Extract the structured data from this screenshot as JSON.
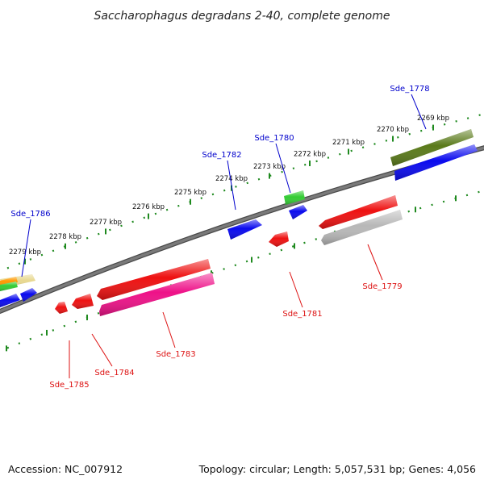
{
  "title": "Saccharophagus degradans 2-40, complete genome",
  "footer": {
    "accession": "Accession: NC_007912",
    "summary": "Topology: circular; Length: 5,057,531 bp; Genes: 4,056"
  },
  "colors": {
    "backbone": "#7a7a7a",
    "ruler": "#1f8a1f",
    "label_forward": "#0000cc",
    "label_reverse": "#dd1111"
  },
  "ruler_labels": [
    "2269 kbp",
    "2270 kbp",
    "2271 kbp",
    "2272 kbp",
    "2273 kbp",
    "2274 kbp",
    "2275 kbp",
    "2276 kbp",
    "2277 kbp",
    "2278 kbp",
    "2279 kbp"
  ],
  "gene_labels": {
    "forward": [
      "Sde_1778",
      "Sde_1780",
      "Sde_1782",
      "Sde_1786"
    ],
    "reverse": [
      "Sde_1779",
      "Sde_1781",
      "Sde_1783",
      "Sde_1784",
      "Sde_1785"
    ]
  },
  "features": {
    "forward_colors": [
      "#5a7a1a",
      "#0a0aee",
      "#33cc33",
      "#0a0aee",
      "#0a0aee",
      "#e8d890",
      "#ff9900",
      "#33cc33",
      "#0a0aee",
      "#0a0aee"
    ],
    "reverse_colors": [
      "#ee1111",
      "#b8b8b8",
      "#ee1111",
      "#ee1111",
      "#ee1188",
      "#ee1111",
      "#ee1111"
    ]
  }
}
